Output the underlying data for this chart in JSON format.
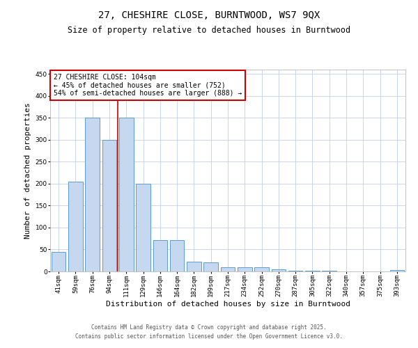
{
  "title": "27, CHESHIRE CLOSE, BURNTWOOD, WS7 9QX",
  "subtitle": "Size of property relative to detached houses in Burntwood",
  "xlabel": "Distribution of detached houses by size in Burntwood",
  "ylabel": "Number of detached properties",
  "categories": [
    "41sqm",
    "59sqm",
    "76sqm",
    "94sqm",
    "111sqm",
    "129sqm",
    "146sqm",
    "164sqm",
    "182sqm",
    "199sqm",
    "217sqm",
    "234sqm",
    "252sqm",
    "270sqm",
    "287sqm",
    "305sqm",
    "322sqm",
    "340sqm",
    "357sqm",
    "375sqm",
    "393sqm"
  ],
  "values": [
    45,
    205,
    350,
    300,
    350,
    200,
    72,
    72,
    22,
    20,
    10,
    10,
    10,
    5,
    2,
    1,
    1,
    0,
    0,
    0,
    3
  ],
  "bar_color": "#c5d8f0",
  "bar_edge_color": "#5b9bd5",
  "highlight_index": 4,
  "highlight_line_color": "#cc0000",
  "ylim": [
    0,
    460
  ],
  "yticks": [
    0,
    50,
    100,
    150,
    200,
    250,
    300,
    350,
    400,
    450
  ],
  "annotation_text": "27 CHESHIRE CLOSE: 104sqm\n← 45% of detached houses are smaller (752)\n54% of semi-detached houses are larger (888) →",
  "annotation_box_color": "#ffffff",
  "annotation_box_edge": "#cc0000",
  "footer_line1": "Contains HM Land Registry data © Crown copyright and database right 2025.",
  "footer_line2": "Contains public sector information licensed under the Open Government Licence v3.0.",
  "bg_color": "#ffffff",
  "grid_color": "#c0d0e8",
  "title_fontsize": 10,
  "subtitle_fontsize": 8.5,
  "tick_fontsize": 6.5,
  "ylabel_fontsize": 8,
  "xlabel_fontsize": 8,
  "annotation_fontsize": 7,
  "footer_fontsize": 5.5
}
